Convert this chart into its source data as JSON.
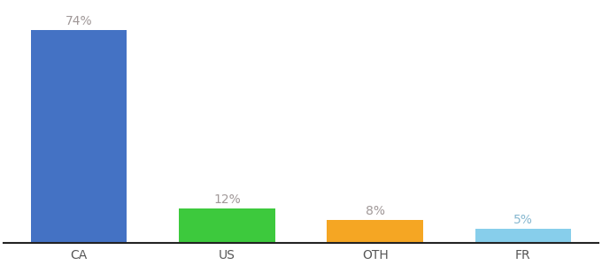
{
  "categories": [
    "CA",
    "US",
    "OTH",
    "FR"
  ],
  "values": [
    74,
    12,
    8,
    5
  ],
  "bar_colors": [
    "#4472c4",
    "#3dc93d",
    "#f5a623",
    "#87ceeb"
  ],
  "labels": [
    "74%",
    "12%",
    "8%",
    "5%"
  ],
  "label_colors": [
    "#a09898",
    "#a09898",
    "#a09898",
    "#87b8d0"
  ],
  "ylim": [
    0,
    83
  ],
  "bar_width": 0.65,
  "label_fontsize": 10,
  "tick_fontsize": 10,
  "background_color": "#ffffff",
  "spine_color": "#222222",
  "tick_color": "#555555"
}
